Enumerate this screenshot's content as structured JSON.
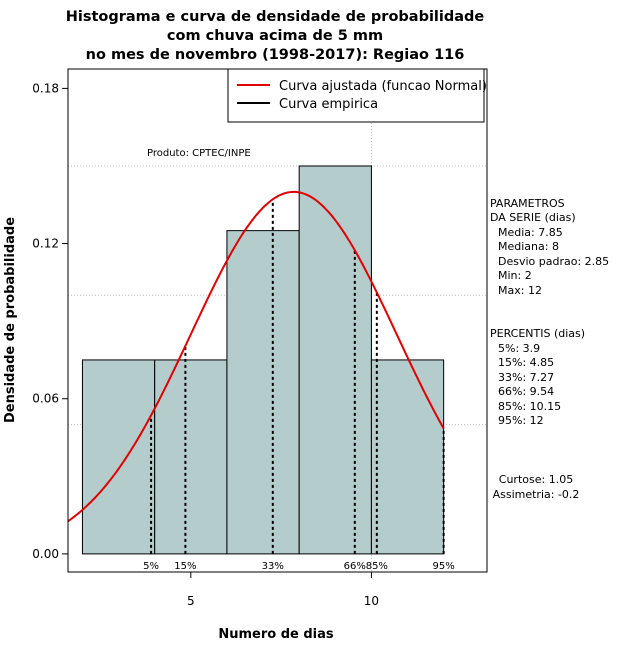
{
  "title": {
    "line1": "Histograma e curva de densidade de probabilidade",
    "line2": "com chuva acima de 5 mm",
    "line3": "no mes de novembro (1998-2017): Regiao 116"
  },
  "watermark": "Produto: CPTEC/INPE",
  "legend": {
    "fitted": "Curva ajustada (funcao Normal)",
    "empirical": "Curva empirica"
  },
  "parametros": {
    "header1": "PARAMETROS",
    "header2": "DA SERIE (dias)",
    "lines": [
      "Media: 7.85",
      "Mediana: 8",
      "Desvio padrao: 2.85",
      "Min: 2",
      "Max: 12"
    ]
  },
  "percentis": {
    "header": "PERCENTIS (dias)",
    "lines": [
      "5%: 3.9",
      "15%: 4.85",
      "33%: 7.27",
      "66%: 9.54",
      "85%: 10.15",
      "95%: 12"
    ]
  },
  "shape": {
    "curtose": "Curtose: 1.05",
    "assimetria": "Assimetria: -0.2"
  },
  "colors": {
    "bar_fill": "#b4cccc",
    "fitted_curve": "#e00000",
    "grid": "#bbbbbb"
  },
  "chart_data": {
    "type": "bar",
    "title": "Histograma e curva de densidade de probabilidade com chuva acima de 5 mm no mes de novembro (1998-2017): Regiao 116",
    "xlabel": "Numero de dias",
    "ylabel": "Densidade de probabilidade",
    "xlim": [
      1.6,
      13.2
    ],
    "ylim": [
      -0.007,
      0.1875
    ],
    "x_ticks": [
      5,
      10
    ],
    "y_ticks": [
      "0.00",
      "0.06",
      "0.12",
      "0.18"
    ],
    "y_tick_values": [
      0,
      0.06,
      0.12,
      0.18
    ],
    "bins": [
      {
        "start": 2,
        "end": 4,
        "density": 0.075
      },
      {
        "start": 4,
        "end": 6,
        "density": 0.075
      },
      {
        "start": 6,
        "end": 8,
        "density": 0.125
      },
      {
        "start": 8,
        "end": 10,
        "density": 0.15
      },
      {
        "start": 10,
        "end": 12,
        "density": 0.075
      }
    ],
    "normal_fit": {
      "mean": 7.85,
      "sd": 2.85
    },
    "percentile_lines": [
      {
        "label": "5%",
        "x": 3.9
      },
      {
        "label": "15%",
        "x": 4.85
      },
      {
        "label": "33%",
        "x": 7.27
      },
      {
        "label": "66%",
        "x": 9.54
      },
      {
        "label": "85%",
        "x": 10.15
      },
      {
        "label": "95%",
        "x": 12
      }
    ],
    "grid_y": [
      0.05,
      0.1,
      0.15
    ],
    "grid_x": [
      10
    ],
    "legend_position": "top-right"
  }
}
